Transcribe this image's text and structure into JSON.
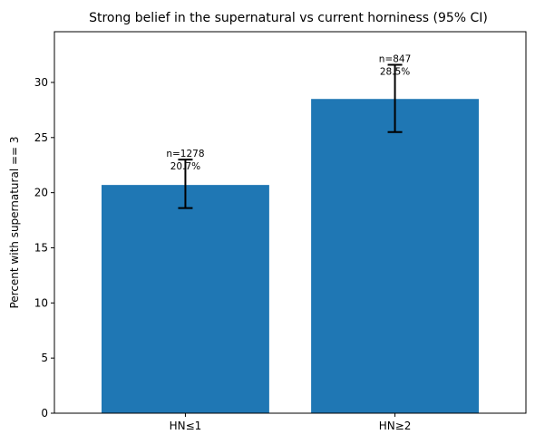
{
  "chart_data": {
    "type": "bar",
    "title": "Strong belief in the supernatural vs current horniness (95% CI)",
    "xlabel": "",
    "ylabel": "Percent with supernatural == 3",
    "categories": [
      "HN≤1",
      "HN≥2"
    ],
    "values": [
      20.7,
      28.5
    ],
    "ci_low": [
      18.6,
      25.5
    ],
    "ci_high": [
      23.0,
      31.6
    ],
    "n_labels": [
      "n=1278",
      "n=847"
    ],
    "pct_labels": [
      "20.7%",
      "28.5%"
    ],
    "ylim": [
      0,
      34.6
    ],
    "yticks": [
      0,
      5,
      10,
      15,
      20,
      25,
      30
    ],
    "bar_color": "#1f77b4",
    "grid": false,
    "legend": "none"
  }
}
